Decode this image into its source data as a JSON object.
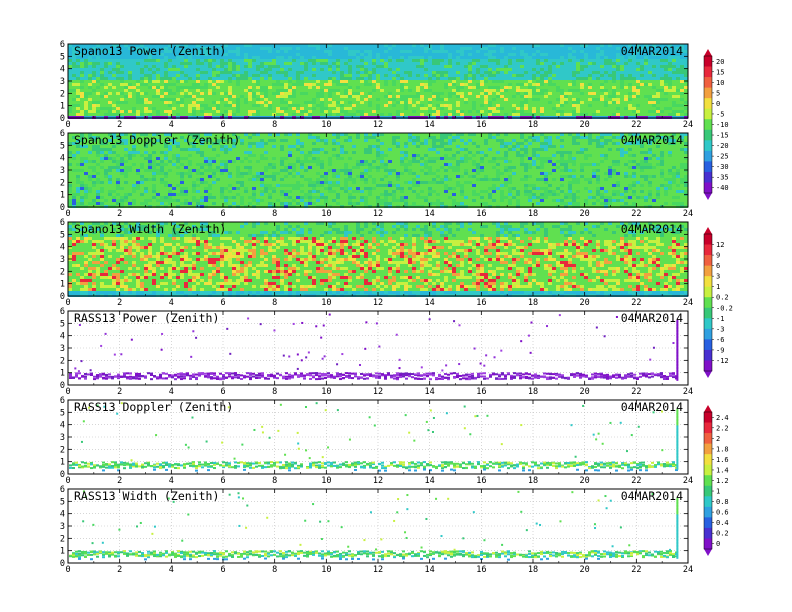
{
  "chart_data": [
    {
      "type": "heatmap",
      "title": "Spano13 Power (Zenith)",
      "date": "04MAR2014",
      "xlim": [
        0,
        24
      ],
      "ylim": [
        0,
        6
      ],
      "xticks": [
        "0",
        "2",
        "4",
        "6",
        "8",
        "10",
        "12",
        "14",
        "16",
        "18",
        "20",
        "22",
        "24"
      ],
      "yticks": [
        "0",
        "1",
        "2",
        "3",
        "4",
        "5",
        "6"
      ],
      "scale": "power",
      "pattern": "dense",
      "grid": false
    },
    {
      "type": "heatmap",
      "title": "Spano13 Doppler (Zenith)",
      "date": "04MAR2014",
      "xlim": [
        0,
        24
      ],
      "ylim": [
        0,
        6
      ],
      "xticks": [
        "0",
        "2",
        "4",
        "6",
        "8",
        "10",
        "12",
        "14",
        "16",
        "18",
        "20",
        "22",
        "24"
      ],
      "yticks": [
        "0",
        "1",
        "2",
        "3",
        "4",
        "5",
        "6"
      ],
      "scale": "power",
      "pattern": "dense",
      "grid": false
    },
    {
      "type": "heatmap",
      "title": "Spano13 Width (Zenith)",
      "date": "04MAR2014",
      "xlim": [
        0,
        24
      ],
      "ylim": [
        0,
        6
      ],
      "xticks": [
        "0",
        "2",
        "4",
        "6",
        "8",
        "10",
        "12",
        "14",
        "16",
        "18",
        "20",
        "22",
        "24"
      ],
      "yticks": [
        "0",
        "1",
        "2",
        "3",
        "4",
        "5",
        "6"
      ],
      "scale": "width",
      "pattern": "dense",
      "grid": false
    },
    {
      "type": "heatmap",
      "title": "RASS13 Power (Zenith)",
      "date": "04MAR2014",
      "xlim": [
        0,
        24
      ],
      "ylim": [
        0,
        6
      ],
      "xticks": [
        "0",
        "2",
        "4",
        "6",
        "8",
        "10",
        "12",
        "14",
        "16",
        "18",
        "20",
        "22",
        "24"
      ],
      "yticks": [
        "0",
        "1",
        "2",
        "3",
        "4",
        "5",
        "6"
      ],
      "scale": "width",
      "pattern": "sparse",
      "grid": true
    },
    {
      "type": "heatmap",
      "title": "RASS13 Doppler (Zenith)",
      "date": "04MAR2014",
      "xlim": [
        0,
        24
      ],
      "ylim": [
        0,
        6
      ],
      "xticks": [
        "0",
        "2",
        "4",
        "6",
        "8",
        "10",
        "12",
        "14",
        "16",
        "18",
        "20",
        "22",
        "24"
      ],
      "yticks": [
        "0",
        "1",
        "2",
        "3",
        "4",
        "5",
        "6"
      ],
      "scale": "rass",
      "pattern": "sparse",
      "grid": true
    },
    {
      "type": "heatmap",
      "title": "RASS13 Width (Zenith)",
      "date": "04MAR2014",
      "xlim": [
        0,
        24
      ],
      "ylim": [
        0,
        6
      ],
      "xticks": [
        "0",
        "2",
        "4",
        "6",
        "8",
        "10",
        "12",
        "14",
        "16",
        "18",
        "20",
        "22",
        "24"
      ],
      "yticks": [
        "0",
        "1",
        "2",
        "3",
        "4",
        "5",
        "6"
      ],
      "scale": "rass",
      "pattern": "sparse",
      "grid": true
    }
  ],
  "colorbars": [
    {
      "name": "power",
      "labels": [
        "20",
        "15",
        "10",
        "5",
        "0",
        "-5",
        "-10",
        "-15",
        "-20",
        "-25",
        "-30",
        "-35",
        "-40"
      ],
      "colors": [
        "#c8002a",
        "#e8283c",
        "#f06040",
        "#f2a040",
        "#f2e040",
        "#c8f040",
        "#60e050",
        "#38c878",
        "#30c8c8",
        "#30a0e0",
        "#2860e0",
        "#4830d0",
        "#8010c8"
      ]
    },
    {
      "name": "width",
      "labels": [
        "12",
        "9",
        "6",
        "3",
        "1",
        "0.2",
        "-0.2",
        "-1",
        "-3",
        "-6",
        "-9",
        "-12"
      ],
      "colors": [
        "#c8002a",
        "#e8283c",
        "#f06040",
        "#f2a040",
        "#f2e040",
        "#c8f040",
        "#60e050",
        "#38c878",
        "#30c8c8",
        "#30a0e0",
        "#2860e0",
        "#4830d0",
        "#8010c8"
      ]
    },
    {
      "name": "rass",
      "labels": [
        "2.4",
        "2.2",
        "2",
        "1.8",
        "1.6",
        "1.4",
        "1.2",
        "1",
        "0.8",
        "0.6",
        "0.4",
        "0.2",
        "0"
      ],
      "colors": [
        "#c8002a",
        "#e8283c",
        "#f06040",
        "#f2a040",
        "#f2e040",
        "#c8f040",
        "#60e050",
        "#38c878",
        "#30c8c8",
        "#30a0e0",
        "#2860e0",
        "#4830d0",
        "#8010c8"
      ]
    }
  ]
}
